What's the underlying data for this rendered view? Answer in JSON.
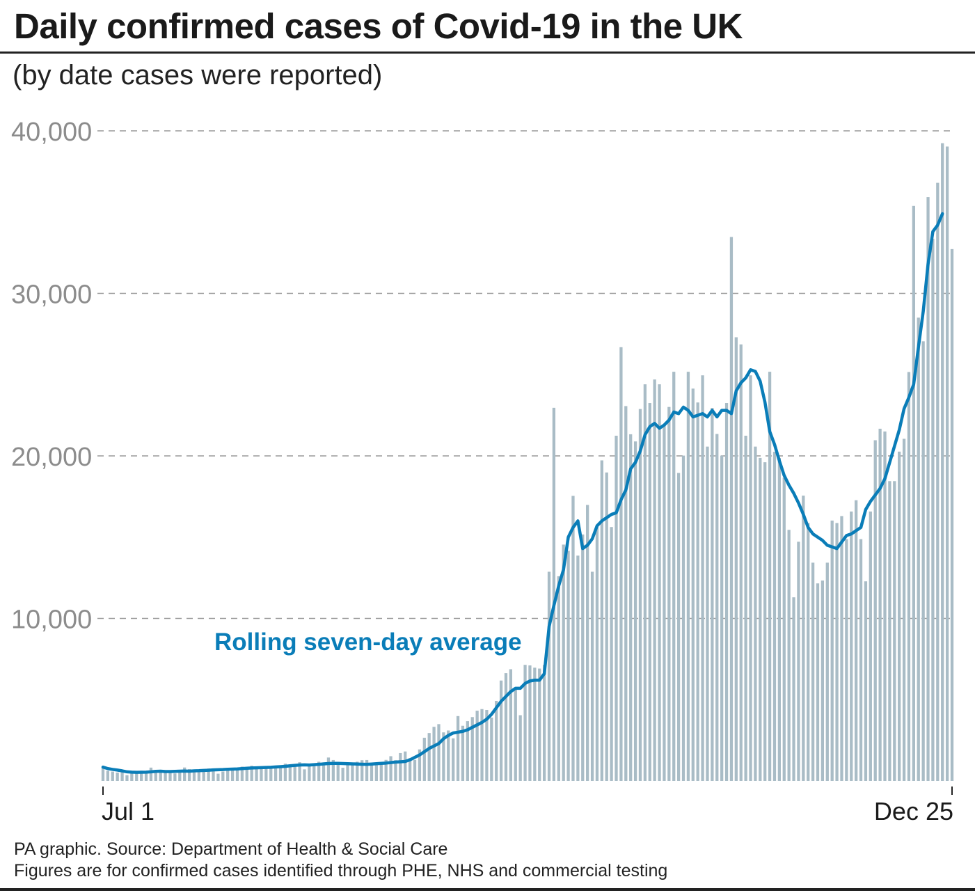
{
  "title": "Daily confirmed cases of Covid-19 in the UK",
  "subtitle": "(by date cases were reported)",
  "footer": {
    "source": "PA graphic. Source: Department of Health & Social Care",
    "note": "Figures are for confirmed cases identified through PHE, NHS and commercial testing"
  },
  "colors": {
    "bars": "#a9bcc6",
    "line": "#0a7db8",
    "grid": "#999999",
    "tick_text": "#8c8c8c",
    "axis_text": "#1a1a1a"
  },
  "chart_data": {
    "type": "bar",
    "title": "Daily confirmed cases of Covid-19 in the UK",
    "subtitle": "(by date cases were reported)",
    "x_start": "Jul 1",
    "x_end": "Dec 25",
    "x_ticks": [
      "Jul 1",
      "Dec 25"
    ],
    "y_ticks": [
      10000,
      20000,
      30000,
      40000
    ],
    "y_tick_labels": [
      "10,000",
      "20,000",
      "30,000",
      "40,000"
    ],
    "ylim": [
      0,
      40000
    ],
    "grid": "horizontal dashed",
    "annotation": "Rolling seven-day average",
    "series": [
      {
        "type": "bar",
        "values": [
          829,
          624,
          576,
          516,
          650,
          352,
          581,
          538,
          630,
          512,
          820,
          650,
          530,
          598,
          538,
          463,
          687,
          827,
          726,
          580,
          560,
          685,
          769,
          767,
          445,
          580,
          768,
          745,
          763,
          880,
          846,
          938,
          744,
          814,
          758,
          871,
          891,
          950,
          1062,
          1012,
          1040,
          1148,
          713,
          1009,
          1077,
          1182,
          1047,
          1441,
          1288,
          1041,
          812,
          1089,
          1033,
          1182,
          1276,
          1288,
          1108,
          1108,
          1050,
          1295,
          1522,
          1276,
          1715,
          1813,
          1406,
          1295,
          1940,
          2659,
          2948,
          3330,
          3497,
          2988,
          3105,
          2621,
          3991,
          3395,
          3679,
          3929,
          4322,
          4422,
          4368,
          3899,
          4926,
          6178,
          6634,
          6874,
          5693,
          4044,
          7143,
          7108,
          6968,
          6914,
          7143,
          12872,
          22961,
          12594,
          14542,
          14162,
          17540,
          13864,
          15166,
          16982,
          12872,
          15650,
          19724,
          18980,
          15623,
          21242,
          26688,
          23065,
          21331,
          20890,
          22885,
          24405,
          23254,
          24701,
          24405,
          21915,
          23012,
          25177,
          18950,
          20018,
          25177,
          24141,
          23287,
          24957,
          20572,
          22950,
          21350,
          20018,
          23254,
          33470,
          27301,
          26860,
          21242,
          24957,
          20572,
          19875,
          19609,
          25177,
          20252,
          19875,
          18662,
          15450,
          11299,
          14718,
          17555,
          15871,
          13430,
          12155,
          12330,
          13430,
          16022,
          15871,
          16298,
          14879,
          16578,
          17272,
          14879,
          12282,
          16578,
          20964,
          21672,
          21502,
          18447,
          18447,
          20263,
          21052,
          25161,
          35383,
          28507,
          27052,
          35928,
          33364,
          36804,
          39237,
          39036,
          32725
        ]
      },
      {
        "type": "line",
        "name": "Rolling seven-day average",
        "values": [
          850,
          760,
          710,
          670,
          620,
          560,
          540,
          530,
          535,
          540,
          560,
          590,
          600,
          580,
          580,
          590,
          600,
          610,
          600,
          620,
          630,
          650,
          660,
          680,
          690,
          700,
          720,
          730,
          740,
          760,
          780,
          800,
          810,
          820,
          830,
          840,
          860,
          880,
          900,
          930,
          960,
          980,
          990,
          980,
          1000,
          1020,
          1050,
          1070,
          1080,
          1080,
          1070,
          1060,
          1050,
          1040,
          1030,
          1020,
          1040,
          1060,
          1080,
          1100,
          1130,
          1160,
          1180,
          1200,
          1300,
          1450,
          1600,
          1800,
          2000,
          2150,
          2300,
          2600,
          2800,
          2950,
          3000,
          3050,
          3150,
          3300,
          3450,
          3600,
          3800,
          4100,
          4500,
          4900,
          5200,
          5500,
          5700,
          5700,
          6000,
          6150,
          6200,
          6200,
          6600,
          9500,
          10800,
          12000,
          13000,
          15000,
          15600,
          16000,
          14300,
          14500,
          14900,
          15700,
          16000,
          16200,
          16400,
          16500,
          17300,
          17900,
          19200,
          19600,
          20300,
          21300,
          21800,
          22000,
          21700,
          21900,
          22200,
          22700,
          22600,
          23000,
          22800,
          22400,
          22500,
          22600,
          22400,
          22800,
          22400,
          22800,
          22800,
          22600,
          24000,
          24500,
          24800,
          25300,
          25200,
          24600,
          23300,
          21500,
          20700,
          19700,
          18800,
          18200,
          17700,
          17100,
          16400,
          15600,
          15200,
          15000,
          14800,
          14500,
          14400,
          14300,
          14700,
          15100,
          15200,
          15400,
          15600,
          16700,
          17200,
          17600,
          18000,
          18600,
          19600,
          20600,
          21600,
          22900,
          23600,
          24400,
          26700,
          28900,
          31800,
          33800,
          34200,
          34900
        ]
      }
    ]
  }
}
